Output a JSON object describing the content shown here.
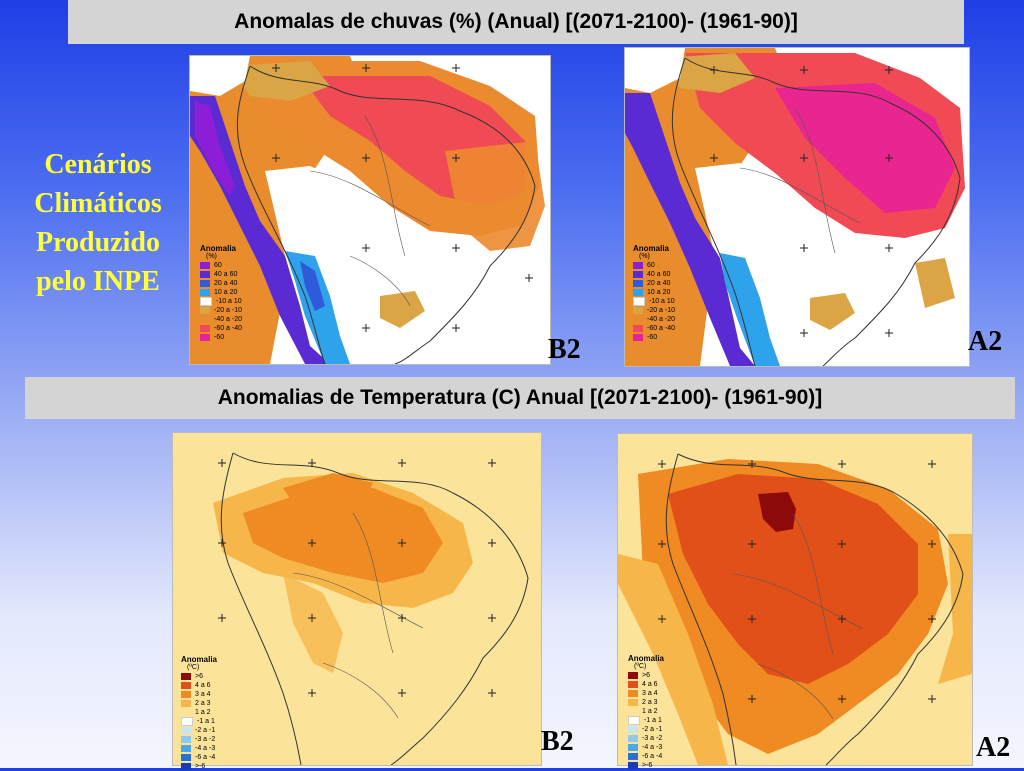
{
  "slide": {
    "rain_title": "Anomalas de chuvas (%) (Anual) [(2071-2100)- (1961-90)]",
    "temp_title": "Anomalias de Temperatura (C) Anual [(2071-2100)- (1961-90)]",
    "side_title": [
      "Cenários",
      "Climáticos",
      "Produzido",
      "pelo INPE"
    ]
  },
  "rain_legend": {
    "title": "Anomalia",
    "unit": "(%)",
    "items": [
      {
        "label": "60",
        "color": "#8b1ed6"
      },
      {
        "label": "40 a 60",
        "color": "#5a2bd2"
      },
      {
        "label": "20 a 40",
        "color": "#2f5bd8"
      },
      {
        "label": "10 a 20",
        "color": "#2ea2ea"
      },
      {
        "label": "-10 a 10",
        "color": "#ffffff"
      },
      {
        "label": "-20 a -10",
        "color": "#dba545"
      },
      {
        "label": "-40 a -20",
        "color": "#ec8a30"
      },
      {
        "label": "-60 a -40",
        "color": "#f04a55"
      },
      {
        "label": "-60",
        "color": "#e8209a"
      }
    ]
  },
  "temp_legend": {
    "title": "Anomalia",
    "unit": "(ºC)",
    "items": [
      {
        "label": ">6",
        "color": "#8c0a0a"
      },
      {
        "label": "4 a 6",
        "color": "#e2501a"
      },
      {
        "label": "3 a 4",
        "color": "#f08a22"
      },
      {
        "label": "2 a 3",
        "color": "#f6b64a"
      },
      {
        "label": "1 a 2",
        "color": "#fbe39a"
      },
      {
        "label": "-1 a 1",
        "color": "#ffffff"
      },
      {
        "label": "-2 a -1",
        "color": "#c6e6f6"
      },
      {
        "label": "-3 a -2",
        "color": "#8ecaf0"
      },
      {
        "label": "-4 a -3",
        "color": "#4fa6e6"
      },
      {
        "label": "-6 a -4",
        "color": "#2a6ed8"
      },
      {
        "label": ">-6",
        "color": "#1a3ab8"
      }
    ]
  },
  "maps": [
    {
      "id": "rain-b2",
      "scenario": "B2",
      "field": "precipitation anomaly"
    },
    {
      "id": "rain-a2",
      "scenario": "A2",
      "field": "precipitation anomaly"
    },
    {
      "id": "temp-b2",
      "scenario": "B2",
      "field": "temperature anomaly"
    },
    {
      "id": "temp-a2",
      "scenario": "A2",
      "field": "temperature anomaly"
    }
  ],
  "colors": {
    "banner": "#d4d4d4",
    "side_title": "#ffff3a"
  }
}
